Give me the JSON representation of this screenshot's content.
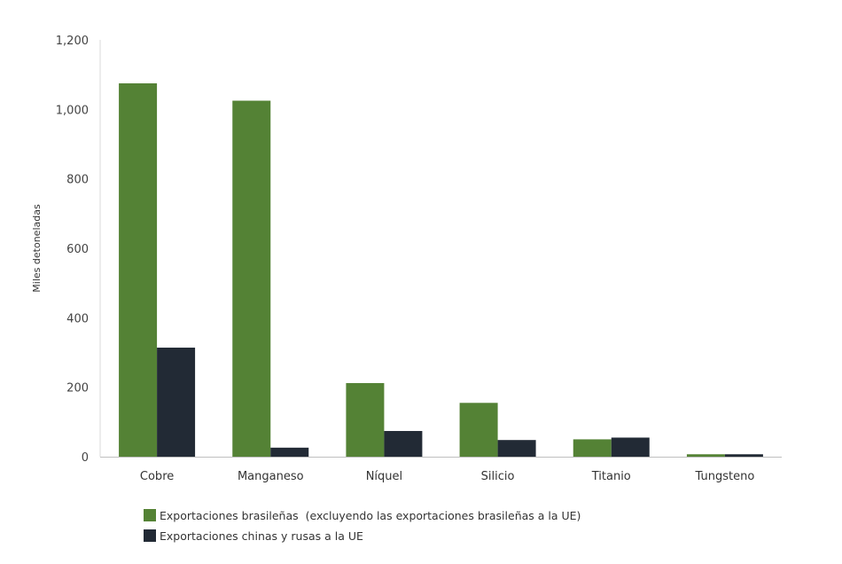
{
  "chart_data": {
    "type": "bar",
    "title": "",
    "xlabel": "",
    "ylabel": "Miles detoneladas",
    "categories": [
      "Cobre",
      "Manganeso",
      "Níquel",
      "Silicio",
      "Titanio",
      "Tungsteno"
    ],
    "series": [
      {
        "name": "Exportaciones brasileñas  (excluyendo las exportaciones brasileñas a la UE)",
        "color": "#548235",
        "values": [
          1075,
          1025,
          212,
          155,
          50,
          7
        ]
      },
      {
        "name": "Exportaciones chinas y rusas a la UE",
        "color": "#222a35",
        "values": [
          314,
          26,
          74,
          48,
          55,
          7
        ]
      }
    ],
    "ylim": [
      0,
      1200
    ],
    "yticks": [
      0,
      200,
      400,
      600,
      800,
      1000,
      1200
    ],
    "ytick_labels": [
      "0",
      "200",
      "400",
      "600",
      "800",
      "1,000",
      "1,200"
    ],
    "grid": false,
    "legend_position": "bottom-left"
  }
}
